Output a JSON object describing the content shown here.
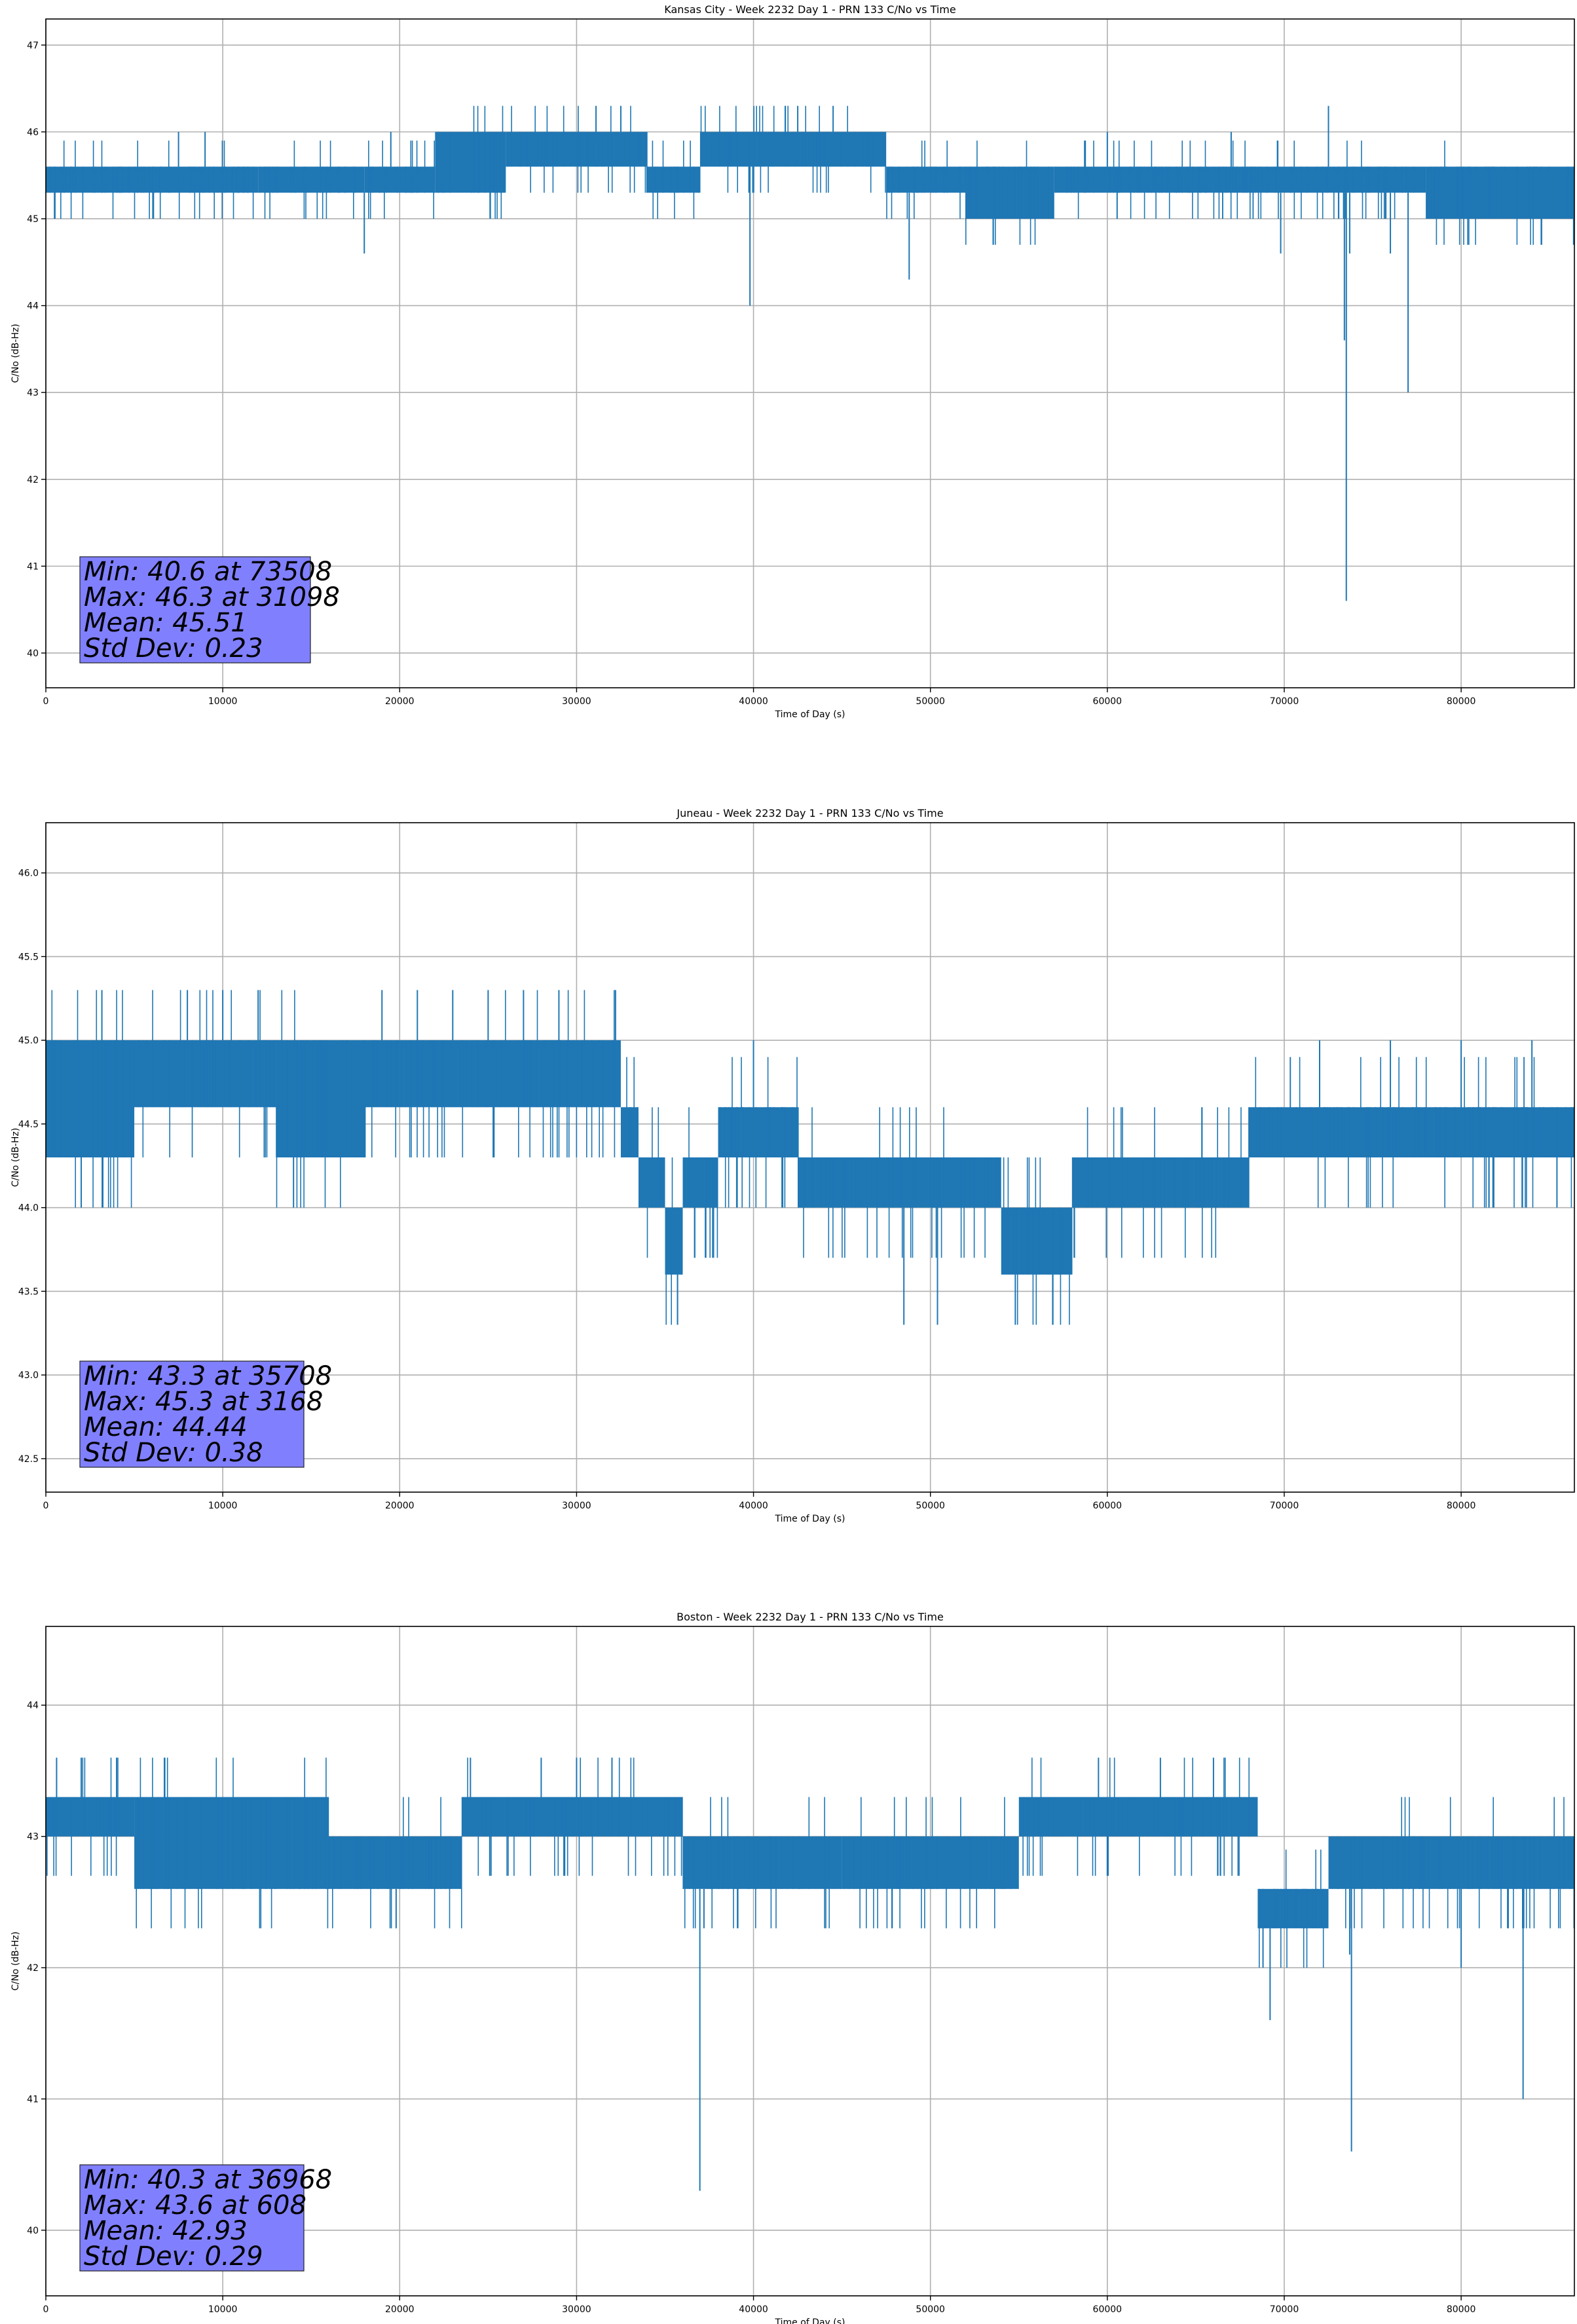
{
  "chart_data": [
    {
      "type": "line",
      "title": "Kansas City - Week 2232 Day 1 - PRN 133 C/No vs Time",
      "xlabel": "Time of Day (s)",
      "ylabel": "C/No (dB-Hz)",
      "xlim": [
        0,
        86400
      ],
      "ylim": [
        39.6,
        47.3
      ],
      "x_ticks": [
        0,
        10000,
        20000,
        30000,
        40000,
        50000,
        60000,
        70000,
        80000
      ],
      "y_ticks": [
        40,
        41,
        42,
        43,
        44,
        45,
        46,
        47
      ],
      "grid": true,
      "color": "#1f77b4",
      "stats": [
        "Min: 40.6 at 73508",
        "Max: 46.3 at 31098",
        "Mean: 45.51",
        "Std Dev: 0.23"
      ],
      "segments": [
        {
          "x0": 0,
          "x1": 7000,
          "lo": 45.3,
          "hi": 45.6
        },
        {
          "x0": 7000,
          "x1": 12000,
          "lo": 45.3,
          "hi": 45.6
        },
        {
          "x0": 12000,
          "x1": 18000,
          "lo": 45.3,
          "hi": 45.6
        },
        {
          "x0": 18000,
          "x1": 22000,
          "lo": 45.3,
          "hi": 45.6
        },
        {
          "x0": 22000,
          "x1": 26000,
          "lo": 45.3,
          "hi": 46.0
        },
        {
          "x0": 26000,
          "x1": 34000,
          "lo": 45.6,
          "hi": 46.0
        },
        {
          "x0": 34000,
          "x1": 37000,
          "lo": 45.3,
          "hi": 45.6
        },
        {
          "x0": 37000,
          "x1": 47500,
          "lo": 45.6,
          "hi": 46.0
        },
        {
          "x0": 47500,
          "x1": 52000,
          "lo": 45.3,
          "hi": 45.6
        },
        {
          "x0": 52000,
          "x1": 57000,
          "lo": 45.0,
          "hi": 45.6
        },
        {
          "x0": 57000,
          "x1": 66000,
          "lo": 45.3,
          "hi": 45.6
        },
        {
          "x0": 66000,
          "x1": 78000,
          "lo": 45.3,
          "hi": 45.6
        },
        {
          "x0": 78000,
          "x1": 86400,
          "lo": 45.0,
          "hi": 45.6
        }
      ],
      "spikes": [
        {
          "x": 18000,
          "y": 44.6
        },
        {
          "x": 39800,
          "y": 44.0
        },
        {
          "x": 48800,
          "y": 44.3
        },
        {
          "x": 69800,
          "y": 44.6
        },
        {
          "x": 73400,
          "y": 43.6
        },
        {
          "x": 73508,
          "y": 40.6
        },
        {
          "x": 73700,
          "y": 44.6
        },
        {
          "x": 76000,
          "y": 44.6
        },
        {
          "x": 77000,
          "y": 43.0
        },
        {
          "x": 31098,
          "y": 46.3
        },
        {
          "x": 32500,
          "y": 46.3
        },
        {
          "x": 41800,
          "y": 46.3
        },
        {
          "x": 42500,
          "y": 46.3
        },
        {
          "x": 44500,
          "y": 46.3
        },
        {
          "x": 72500,
          "y": 46.3
        },
        {
          "x": 7500,
          "y": 46.0
        },
        {
          "x": 9000,
          "y": 46.0
        },
        {
          "x": 19500,
          "y": 46.0
        },
        {
          "x": 60000,
          "y": 46.0
        },
        {
          "x": 67000,
          "y": 46.0
        }
      ]
    },
    {
      "type": "line",
      "title": "Juneau - Week 2232 Day 1 - PRN 133 C/No vs Time",
      "xlabel": "Time of Day (s)",
      "ylabel": "C/No (dB-Hz)",
      "xlim": [
        0,
        86400
      ],
      "ylim": [
        42.3,
        46.3
      ],
      "x_ticks": [
        0,
        10000,
        20000,
        30000,
        40000,
        50000,
        60000,
        70000,
        80000
      ],
      "y_ticks": [
        42.5,
        43.0,
        43.5,
        44.0,
        44.5,
        45.0,
        45.5,
        46.0
      ],
      "y_tick_labels": [
        "42.5",
        "43.0",
        "43.5",
        "44.0",
        "44.5",
        "45.0",
        "45.5",
        "46.0"
      ],
      "grid": true,
      "color": "#1f77b4",
      "stats": [
        "Min: 43.3 at 35708",
        "Max: 45.3 at 3168",
        "Mean: 44.44",
        "Std Dev: 0.38"
      ],
      "segments": [
        {
          "x0": 0,
          "x1": 5000,
          "lo": 44.3,
          "hi": 45.0
        },
        {
          "x0": 5000,
          "x1": 13000,
          "lo": 44.6,
          "hi": 45.0
        },
        {
          "x0": 13000,
          "x1": 18000,
          "lo": 44.3,
          "hi": 45.0
        },
        {
          "x0": 18000,
          "x1": 32500,
          "lo": 44.6,
          "hi": 45.0
        },
        {
          "x0": 32500,
          "x1": 33500,
          "lo": 44.3,
          "hi": 44.6
        },
        {
          "x0": 33500,
          "x1": 35000,
          "lo": 44.0,
          "hi": 44.3
        },
        {
          "x0": 35000,
          "x1": 36000,
          "lo": 43.6,
          "hi": 44.0
        },
        {
          "x0": 36000,
          "x1": 38000,
          "lo": 44.0,
          "hi": 44.3
        },
        {
          "x0": 38000,
          "x1": 42500,
          "lo": 44.3,
          "hi": 44.6
        },
        {
          "x0": 42500,
          "x1": 54000,
          "lo": 44.0,
          "hi": 44.3
        },
        {
          "x0": 54000,
          "x1": 58000,
          "lo": 43.6,
          "hi": 44.0
        },
        {
          "x0": 58000,
          "x1": 68000,
          "lo": 44.0,
          "hi": 44.3
        },
        {
          "x0": 68000,
          "x1": 86400,
          "lo": 44.3,
          "hi": 44.6
        }
      ],
      "spikes": [
        {
          "x": 3168,
          "y": 45.3
        },
        {
          "x": 8000,
          "y": 45.3
        },
        {
          "x": 10000,
          "y": 45.3
        },
        {
          "x": 12000,
          "y": 45.3
        },
        {
          "x": 19000,
          "y": 45.3
        },
        {
          "x": 21000,
          "y": 45.3
        },
        {
          "x": 23000,
          "y": 45.3
        },
        {
          "x": 25000,
          "y": 45.3
        },
        {
          "x": 27000,
          "y": 45.3
        },
        {
          "x": 29000,
          "y": 45.3
        },
        {
          "x": 32200,
          "y": 45.3
        },
        {
          "x": 2000,
          "y": 44.0
        },
        {
          "x": 14000,
          "y": 44.0
        },
        {
          "x": 35708,
          "y": 43.3
        },
        {
          "x": 48500,
          "y": 43.3
        },
        {
          "x": 50400,
          "y": 43.3
        },
        {
          "x": 54800,
          "y": 43.3
        },
        {
          "x": 40000,
          "y": 45.0
        },
        {
          "x": 72000,
          "y": 45.0
        },
        {
          "x": 76000,
          "y": 45.0
        },
        {
          "x": 80000,
          "y": 45.0
        },
        {
          "x": 84000,
          "y": 45.0
        }
      ]
    },
    {
      "type": "line",
      "title": "Boston - Week 2232 Day 1 - PRN 133 C/No vs Time",
      "xlabel": "Time of Day (s)",
      "ylabel": "C/No (dB-Hz)",
      "xlim": [
        0,
        86400
      ],
      "ylim": [
        39.5,
        44.6
      ],
      "x_ticks": [
        0,
        10000,
        20000,
        30000,
        40000,
        50000,
        60000,
        70000,
        80000
      ],
      "y_ticks": [
        40,
        41,
        42,
        43,
        44
      ],
      "grid": true,
      "color": "#1f77b4",
      "stats": [
        "Min: 40.3 at 36968",
        "Max: 43.6 at 608",
        "Mean: 42.93",
        "Std Dev: 0.29"
      ],
      "segments": [
        {
          "x0": 0,
          "x1": 5000,
          "lo": 43.0,
          "hi": 43.3
        },
        {
          "x0": 5000,
          "x1": 16000,
          "lo": 42.6,
          "hi": 43.3
        },
        {
          "x0": 16000,
          "x1": 23500,
          "lo": 42.6,
          "hi": 43.0
        },
        {
          "x0": 23500,
          "x1": 36000,
          "lo": 43.0,
          "hi": 43.3
        },
        {
          "x0": 36000,
          "x1": 45000,
          "lo": 42.6,
          "hi": 43.0
        },
        {
          "x0": 45000,
          "x1": 55000,
          "lo": 42.6,
          "hi": 43.0
        },
        {
          "x0": 55000,
          "x1": 68500,
          "lo": 43.0,
          "hi": 43.3
        },
        {
          "x0": 68500,
          "x1": 72500,
          "lo": 42.3,
          "hi": 42.6
        },
        {
          "x0": 72500,
          "x1": 86400,
          "lo": 42.6,
          "hi": 43.0
        }
      ],
      "spikes": [
        {
          "x": 608,
          "y": 43.6
        },
        {
          "x": 2000,
          "y": 43.6
        },
        {
          "x": 4000,
          "y": 43.6
        },
        {
          "x": 24000,
          "y": 43.6
        },
        {
          "x": 28000,
          "y": 43.6
        },
        {
          "x": 30000,
          "y": 43.6
        },
        {
          "x": 32000,
          "y": 43.6
        },
        {
          "x": 59500,
          "y": 43.6
        },
        {
          "x": 63000,
          "y": 43.6
        },
        {
          "x": 66000,
          "y": 43.6
        },
        {
          "x": 19800,
          "y": 42.3
        },
        {
          "x": 36968,
          "y": 40.3
        },
        {
          "x": 37200,
          "y": 42.3
        },
        {
          "x": 69200,
          "y": 41.6
        },
        {
          "x": 68800,
          "y": 42.0
        },
        {
          "x": 73800,
          "y": 40.6
        },
        {
          "x": 73700,
          "y": 42.1
        },
        {
          "x": 80000,
          "y": 42.0
        },
        {
          "x": 83500,
          "y": 41.0
        }
      ]
    }
  ]
}
